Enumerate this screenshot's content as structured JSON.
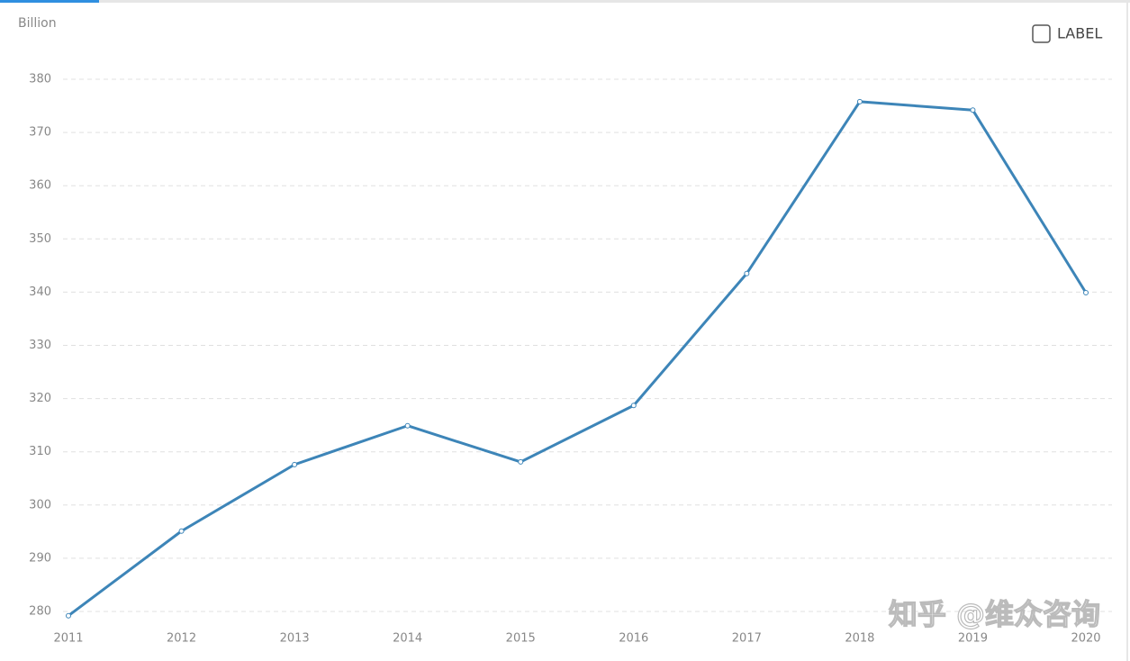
{
  "chart_data": {
    "type": "line",
    "y_unit": "Billion",
    "legend_toggle": "LABEL",
    "watermark": "知乎 @维众咨询",
    "categories": [
      "2011",
      "2012",
      "2013",
      "2014",
      "2015",
      "2016",
      "2017",
      "2018",
      "2019",
      "2020"
    ],
    "series": [
      {
        "color": "#3d85b8",
        "values": [
          279.2,
          295.1,
          307.6,
          314.9,
          308.1,
          318.7,
          343.5,
          375.8,
          374.2,
          339.9
        ]
      }
    ],
    "ylim": [
      278,
      382
    ],
    "yticks": [
      280,
      290,
      300,
      310,
      320,
      330,
      340,
      350,
      360,
      370,
      380
    ],
    "grid": true
  }
}
